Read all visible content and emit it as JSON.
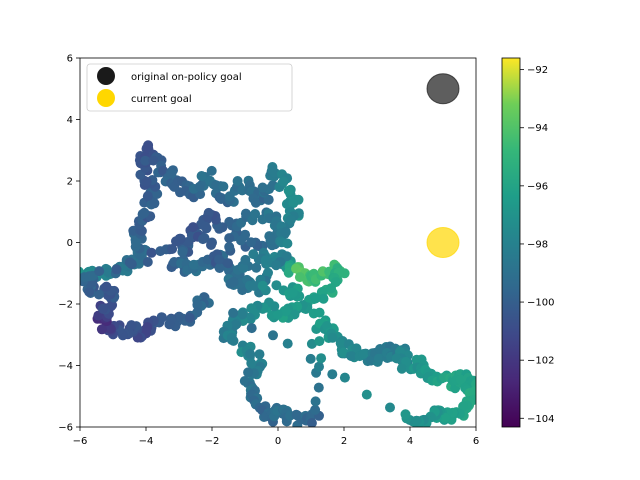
{
  "chart_data": {
    "type": "scatter",
    "title": "",
    "xlabel": "",
    "ylabel": "",
    "xlim": [
      -6,
      6
    ],
    "ylim": [
      -6,
      6
    ],
    "xticks": [
      -6,
      -4,
      -2,
      0,
      2,
      4,
      6
    ],
    "yticks": [
      -6,
      -4,
      -2,
      0,
      2,
      4,
      6
    ],
    "grid": false,
    "legend": {
      "placement": "top-left",
      "entries": [
        {
          "label": "original on-policy goal",
          "color": "#1a1a1a"
        },
        {
          "label": "current goal",
          "color": "#ffd700"
        }
      ]
    },
    "goals": [
      {
        "name": "original on-policy goal",
        "x": 5.0,
        "y": 5.0,
        "color": "#1a1a1a",
        "alpha": 0.7
      },
      {
        "name": "current goal",
        "x": 5.0,
        "y": 0.0,
        "color": "#ffd700",
        "alpha": 0.7
      }
    ],
    "colorbar": {
      "min": -104.3,
      "max": -91.6,
      "ticks": [
        -104,
        -102,
        -100,
        -98,
        -96,
        -94,
        -92
      ],
      "colormap": "viridis"
    },
    "trajectory": [
      {
        "x": -6.0,
        "y": -1.1,
        "value": -97.0
      },
      {
        "x": -5.6,
        "y": -1.0,
        "value": -97.6
      },
      {
        "x": -5.0,
        "y": -0.9,
        "value": -98.2
      },
      {
        "x": -4.6,
        "y": -0.8,
        "value": -98.6
      },
      {
        "x": -4.2,
        "y": -0.6,
        "value": -99.0
      },
      {
        "x": -4.1,
        "y": -0.2,
        "value": -99.4
      },
      {
        "x": -4.3,
        "y": 0.3,
        "value": -99.8
      },
      {
        "x": -4.1,
        "y": 0.9,
        "value": -100.2
      },
      {
        "x": -3.8,
        "y": 1.5,
        "value": -100.0
      },
      {
        "x": -4.0,
        "y": 2.2,
        "value": -100.4
      },
      {
        "x": -4.1,
        "y": 3.1,
        "value": -100.8
      },
      {
        "x": -3.6,
        "y": 2.5,
        "value": -100.2
      },
      {
        "x": -3.1,
        "y": 2.0,
        "value": -99.6
      },
      {
        "x": -2.6,
        "y": 1.6,
        "value": -99.8
      },
      {
        "x": -2.1,
        "y": 2.2,
        "value": -99.0
      },
      {
        "x": -1.6,
        "y": 1.3,
        "value": -99.6
      },
      {
        "x": -1.0,
        "y": 1.9,
        "value": -98.8
      },
      {
        "x": -0.4,
        "y": 1.3,
        "value": -99.4
      },
      {
        "x": -0.2,
        "y": 2.4,
        "value": -98.4
      },
      {
        "x": 0.4,
        "y": 1.6,
        "value": -97.2
      },
      {
        "x": 0.5,
        "y": 0.9,
        "value": -97.8
      },
      {
        "x": 0.0,
        "y": 0.3,
        "value": -98.8
      },
      {
        "x": -0.6,
        "y": -0.2,
        "value": -99.6
      },
      {
        "x": -1.4,
        "y": 0.5,
        "value": -100.0
      },
      {
        "x": -2.1,
        "y": 0.9,
        "value": -100.4
      },
      {
        "x": -2.6,
        "y": 0.1,
        "value": -100.2
      },
      {
        "x": -3.1,
        "y": -0.6,
        "value": -99.8
      },
      {
        "x": -2.6,
        "y": -0.9,
        "value": -99.2
      },
      {
        "x": -1.9,
        "y": -0.5,
        "value": -99.6
      },
      {
        "x": -1.2,
        "y": -1.0,
        "value": -99.0
      },
      {
        "x": -0.6,
        "y": -0.5,
        "value": -98.4
      },
      {
        "x": 0.1,
        "y": -0.7,
        "value": -97.8
      },
      {
        "x": 0.7,
        "y": -0.9,
        "value": -93.8
      },
      {
        "x": 1.1,
        "y": -1.3,
        "value": -94.8
      },
      {
        "x": 1.6,
        "y": -0.8,
        "value": -94.2
      },
      {
        "x": 1.9,
        "y": -1.0,
        "value": -95.2
      },
      {
        "x": 1.4,
        "y": -1.7,
        "value": -96.0
      },
      {
        "x": 0.8,
        "y": -2.1,
        "value": -96.8
      },
      {
        "x": 0.2,
        "y": -2.4,
        "value": -96.4
      },
      {
        "x": -0.4,
        "y": -2.0,
        "value": -97.2
      },
      {
        "x": -1.1,
        "y": -2.4,
        "value": -97.8
      },
      {
        "x": -1.6,
        "y": -2.9,
        "value": -98.4
      },
      {
        "x": -1.0,
        "y": -3.4,
        "value": -97.6
      },
      {
        "x": -0.6,
        "y": -3.9,
        "value": -98.2
      },
      {
        "x": -0.9,
        "y": -4.5,
        "value": -98.8
      },
      {
        "x": -0.6,
        "y": -5.2,
        "value": -99.2
      },
      {
        "x": -0.3,
        "y": -5.7,
        "value": -99.6
      },
      {
        "x": 0.1,
        "y": -5.5,
        "value": -99.0
      },
      {
        "x": 0.6,
        "y": -5.8,
        "value": -99.4
      },
      {
        "x": 1.2,
        "y": -5.7,
        "value": -99.8
      },
      {
        "x": 1.2,
        "y": -2.4,
        "value": -96.2
      },
      {
        "x": 1.6,
        "y": -2.8,
        "value": -96.8
      },
      {
        "x": 1.9,
        "y": -3.4,
        "value": -97.4
      },
      {
        "x": 2.3,
        "y": -3.6,
        "value": -97.8
      },
      {
        "x": 2.9,
        "y": -3.8,
        "value": -98.2
      },
      {
        "x": 3.4,
        "y": -3.5,
        "value": -98.6
      },
      {
        "x": 3.8,
        "y": -3.6,
        "value": -98.0
      },
      {
        "x": 3.7,
        "y": -4.0,
        "value": -97.4
      },
      {
        "x": 4.3,
        "y": -3.9,
        "value": -97.0
      },
      {
        "x": 4.6,
        "y": -4.3,
        "value": -96.6
      },
      {
        "x": 5.2,
        "y": -4.6,
        "value": -95.8
      },
      {
        "x": 5.6,
        "y": -4.3,
        "value": -96.4
      },
      {
        "x": 5.9,
        "y": -4.8,
        "value": -96.0
      },
      {
        "x": 5.7,
        "y": -5.3,
        "value": -95.6
      },
      {
        "x": 5.3,
        "y": -5.7,
        "value": -96.2
      },
      {
        "x": 4.8,
        "y": -5.5,
        "value": -96.8
      },
      {
        "x": 4.3,
        "y": -5.9,
        "value": -97.2
      },
      {
        "x": 4.0,
        "y": -5.6,
        "value": -97.0
      },
      {
        "x": -2.1,
        "y": -1.9,
        "value": -99.4
      },
      {
        "x": -2.7,
        "y": -2.4,
        "value": -99.8
      },
      {
        "x": -3.2,
        "y": -2.6,
        "value": -100.2
      },
      {
        "x": -3.8,
        "y": -2.6,
        "value": -100.6
      },
      {
        "x": -4.1,
        "y": -3.0,
        "value": -101.2
      },
      {
        "x": -4.6,
        "y": -2.8,
        "value": -100.6
      },
      {
        "x": -5.1,
        "y": -2.9,
        "value": -101.0
      },
      {
        "x": -5.4,
        "y": -2.5,
        "value": -102.6
      },
      {
        "x": -5.2,
        "y": -2.1,
        "value": -101.0
      },
      {
        "x": -5.0,
        "y": -1.6,
        "value": -100.4
      },
      {
        "x": -5.6,
        "y": -1.6,
        "value": -100.0
      },
      {
        "x": -5.8,
        "y": -1.2,
        "value": -99.6
      },
      {
        "x": -3.4,
        "y": -0.2,
        "value": -100.4
      },
      {
        "x": -2.4,
        "y": 0.4,
        "value": -100.6
      },
      {
        "x": -1.8,
        "y": -0.9,
        "value": -100.0
      },
      {
        "x": -0.9,
        "y": 0.9,
        "value": -99.2
      },
      {
        "x": -0.2,
        "y": 0.8,
        "value": -98.6
      },
      {
        "x": 0.3,
        "y": -0.2,
        "value": -98.0
      },
      {
        "x": -0.7,
        "y": -1.5,
        "value": -98.6
      },
      {
        "x": -1.5,
        "y": -1.3,
        "value": -99.2
      },
      {
        "x": 0.5,
        "y": -1.6,
        "value": -96.6
      }
    ]
  }
}
